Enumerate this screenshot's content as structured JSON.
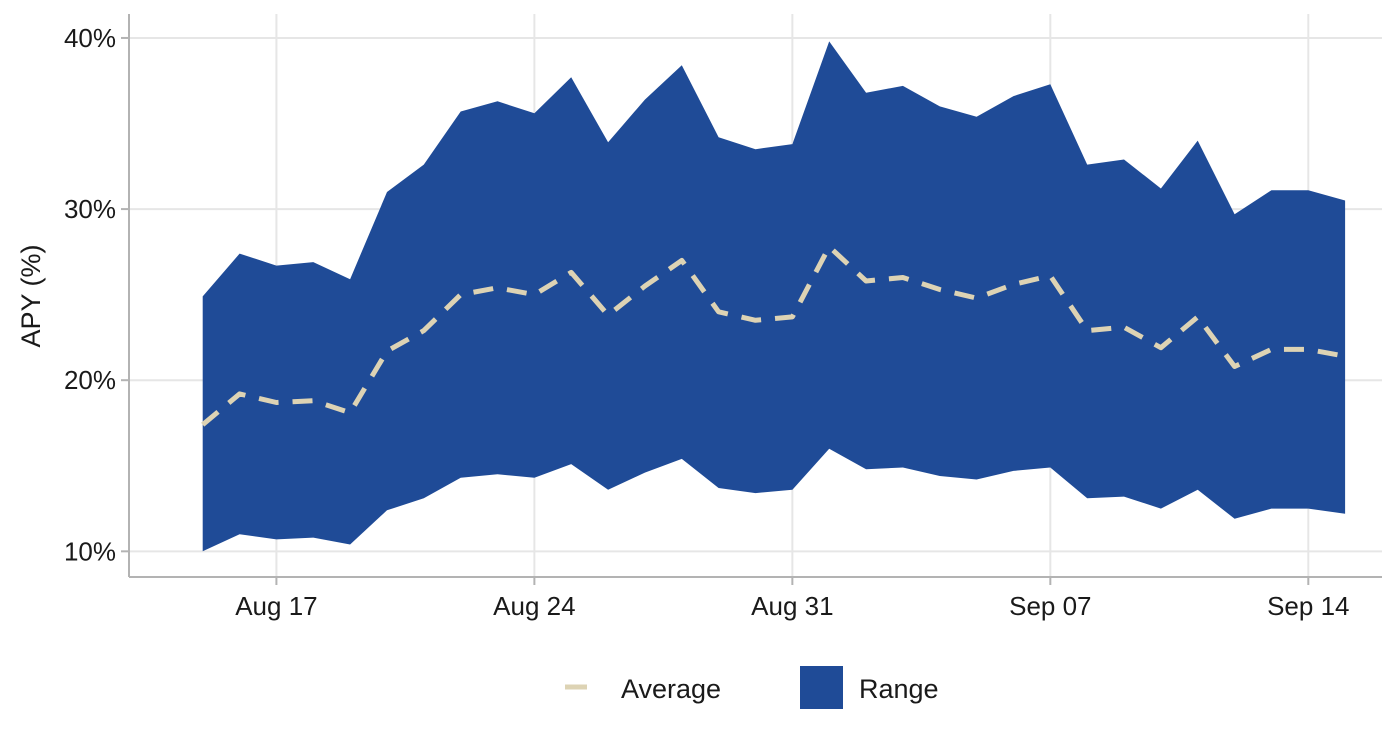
{
  "chart_data": {
    "type": "area",
    "title": "",
    "xlabel": "",
    "ylabel": "APY (%)",
    "x": [
      "2024-08-15",
      "2024-08-16",
      "2024-08-17",
      "2024-08-18",
      "2024-08-19",
      "2024-08-20",
      "2024-08-21",
      "2024-08-22",
      "2024-08-23",
      "2024-08-24",
      "2024-08-25",
      "2024-08-26",
      "2024-08-27",
      "2024-08-28",
      "2024-08-29",
      "2024-08-30",
      "2024-08-31",
      "2024-09-01",
      "2024-09-02",
      "2024-09-03",
      "2024-09-04",
      "2024-09-05",
      "2024-09-06",
      "2024-09-07",
      "2024-09-08",
      "2024-09-09",
      "2024-09-10",
      "2024-09-11",
      "2024-09-12",
      "2024-09-13",
      "2024-09-14",
      "2024-09-15"
    ],
    "series": [
      {
        "name": "Average",
        "kind": "line",
        "values": [
          17.4,
          19.2,
          18.7,
          18.8,
          18.1,
          21.7,
          22.9,
          25.0,
          25.4,
          25.0,
          26.3,
          23.8,
          25.5,
          27.0,
          24.0,
          23.5,
          23.7,
          27.8,
          25.8,
          26.0,
          25.3,
          24.8,
          25.6,
          26.1,
          22.9,
          23.1,
          21.9,
          23.7,
          20.8,
          21.8,
          21.8,
          21.4
        ]
      },
      {
        "name": "Range",
        "kind": "ribbon",
        "low": [
          10.0,
          11.0,
          10.7,
          10.8,
          10.4,
          12.4,
          13.1,
          14.3,
          14.5,
          14.3,
          15.1,
          13.6,
          14.6,
          15.4,
          13.7,
          13.4,
          13.6,
          16.0,
          14.8,
          14.9,
          14.4,
          14.2,
          14.7,
          14.9,
          13.1,
          13.2,
          12.5,
          13.6,
          11.9,
          12.5,
          12.5,
          12.2
        ],
        "high": [
          24.9,
          27.4,
          26.7,
          26.9,
          25.9,
          31.0,
          32.6,
          35.7,
          36.3,
          35.6,
          37.7,
          33.9,
          36.4,
          38.4,
          34.2,
          33.5,
          33.8,
          39.8,
          36.8,
          37.2,
          36.0,
          35.4,
          36.6,
          37.3,
          32.6,
          32.9,
          31.2,
          34.0,
          29.7,
          31.1,
          31.1,
          30.5
        ]
      }
    ],
    "x_ticks": [
      {
        "date": "2024-08-17",
        "label": "Aug 17"
      },
      {
        "date": "2024-08-24",
        "label": "Aug 24"
      },
      {
        "date": "2024-08-31",
        "label": "Aug 31"
      },
      {
        "date": "2024-09-07",
        "label": "Sep 07"
      },
      {
        "date": "2024-09-14",
        "label": "Sep 14"
      }
    ],
    "y_ticks": [
      {
        "value": 10,
        "label": "10%"
      },
      {
        "value": 20,
        "label": "20%"
      },
      {
        "value": 30,
        "label": "30%"
      },
      {
        "value": 40,
        "label": "40%"
      }
    ],
    "xlim": [
      "2024-08-13",
      "2024-09-16"
    ],
    "ylim": [
      8.5,
      41.4
    ],
    "grid": true,
    "legend": {
      "position": "bottom",
      "items": [
        {
          "label": "Average",
          "key": "line"
        },
        {
          "label": "Range",
          "key": "fill"
        }
      ]
    },
    "colors": {
      "range_fill": "#1f4b97",
      "average_line": "#ddd3b4",
      "grid": "#e6e6e6",
      "axis": "#b3b3b3",
      "text": "#1a1a1a"
    }
  }
}
